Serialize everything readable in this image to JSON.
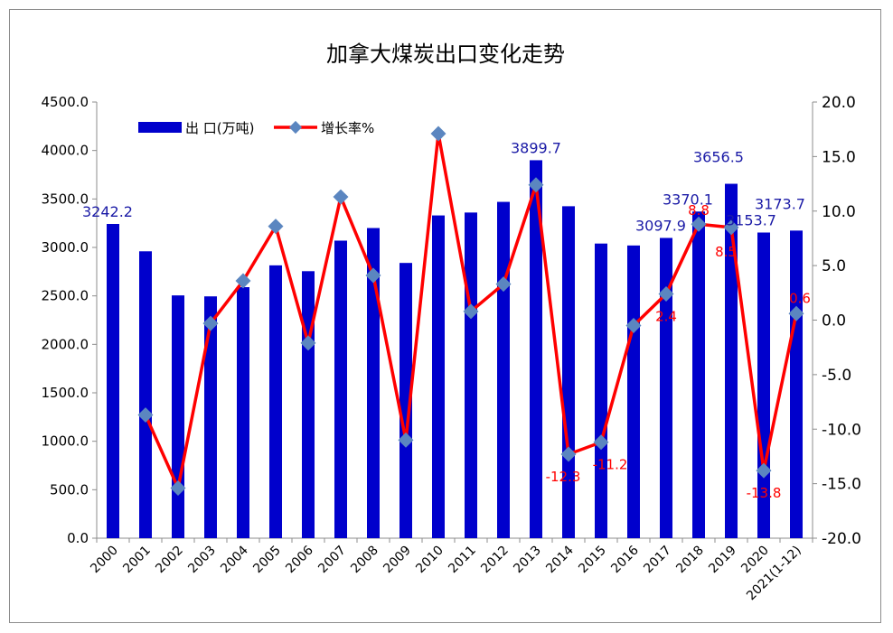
{
  "chart_data": {
    "type": "bar",
    "title": "加拿大煤炭出口变化走势",
    "categories": [
      "2000",
      "2001",
      "2002",
      "2003",
      "2004",
      "2005",
      "2006",
      "2007",
      "2008",
      "2009",
      "2010",
      "2011",
      "2012",
      "2013",
      "2014",
      "2015",
      "2016",
      "2017",
      "2018",
      "2019",
      "2020",
      "2021(1-12)"
    ],
    "series": [
      {
        "name": "出 口(万吨)",
        "type": "bar",
        "axis": "left",
        "color": "#0000cc",
        "values": [
          3242.2,
          2960,
          2505,
          2495,
          2590,
          2815,
          2755,
          3070,
          3200,
          2840,
          3330,
          3360,
          3470,
          3899.7,
          3425,
          3040,
          3020,
          3097.9,
          3370.1,
          3656.5,
          3153.7,
          3173.7
        ],
        "labels": [
          {
            "index": 0,
            "text": "3242.2"
          },
          {
            "index": 13,
            "text": "3899.7"
          },
          {
            "index": 17,
            "text": "3097.9"
          },
          {
            "index": 18,
            "text": "3370.1"
          },
          {
            "index": 19,
            "text": "3656.5"
          },
          {
            "index": 20,
            "text": "3153.7"
          },
          {
            "index": 21,
            "text": "3173.7"
          }
        ]
      },
      {
        "name": "增长率%",
        "type": "line",
        "axis": "right",
        "color": "#ff0000",
        "marker_color": "#5b86c0",
        "values": [
          null,
          -8.7,
          -15.4,
          -0.3,
          3.6,
          8.6,
          -2.1,
          11.3,
          4.1,
          -11.0,
          17.1,
          0.8,
          3.3,
          12.4,
          -12.3,
          -11.2,
          -0.5,
          2.4,
          8.8,
          8.5,
          -13.8,
          0.6
        ],
        "labels": [
          {
            "index": 14,
            "text": "-12.3"
          },
          {
            "index": 15,
            "text": "-11.2"
          },
          {
            "index": 17,
            "text": "2.4"
          },
          {
            "index": 18,
            "text": "8.8"
          },
          {
            "index": 19,
            "text": "8.5"
          },
          {
            "index": 20,
            "text": "-13.8"
          },
          {
            "index": 21,
            "text": "0.6"
          }
        ]
      }
    ],
    "y_left": {
      "min": 0,
      "max": 4500,
      "step": 500,
      "ticks": [
        "0.0",
        "500.0",
        "1000.0",
        "1500.0",
        "2000.0",
        "2500.0",
        "3000.0",
        "3500.0",
        "4000.0",
        "4500.0"
      ]
    },
    "y_right": {
      "min": -20,
      "max": 20,
      "step": 5,
      "ticks": [
        "-20.0",
        "-15.0",
        "-10.0",
        "-5.0",
        "0.0",
        "5.0",
        "10.0",
        "15.0",
        "20.0"
      ]
    },
    "grid": false,
    "legend": "top-left"
  }
}
